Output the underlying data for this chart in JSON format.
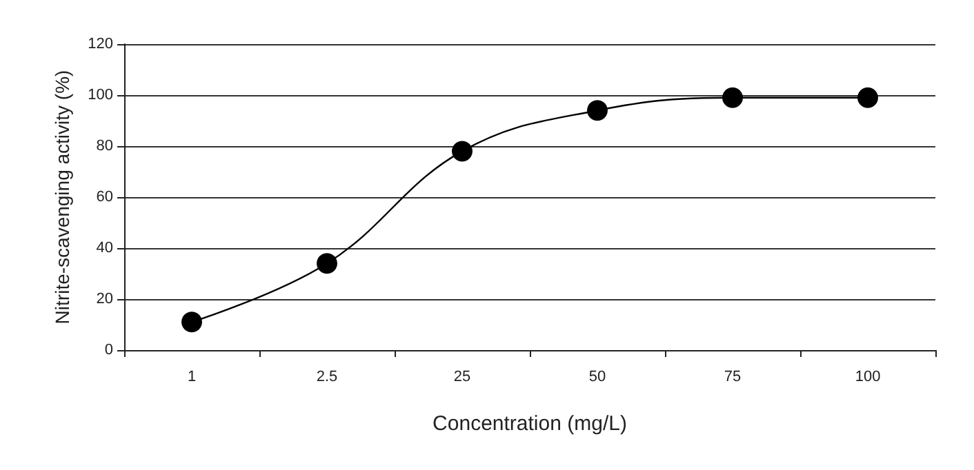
{
  "chart_data": {
    "type": "line",
    "xlabel": "Concentration (mg/L)",
    "ylabel": "Nitrite-scavenging activity (%)",
    "categories": [
      "1",
      "2.5",
      "25",
      "50",
      "75",
      "100"
    ],
    "series": [
      {
        "color": "#000000",
        "values": [
          11,
          34,
          78,
          94,
          99,
          99
        ]
      }
    ],
    "ylim": [
      0,
      120
    ],
    "yticks": [
      0,
      20,
      40,
      60,
      80,
      100,
      120
    ],
    "grid": "y",
    "marker": "circle",
    "line_style": "solid"
  }
}
